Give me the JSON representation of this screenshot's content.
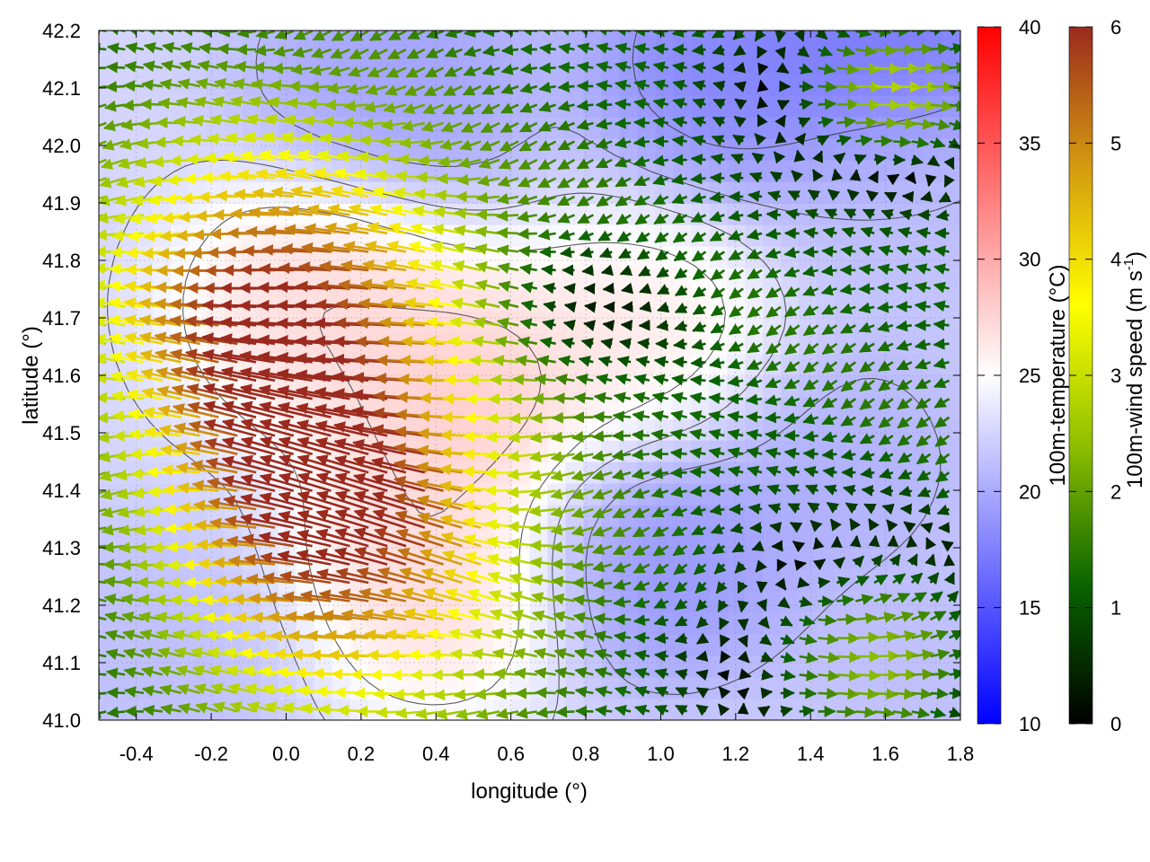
{
  "chart_data": {
    "type": "heatmap",
    "xlabel": "longitude (°)",
    "ylabel": "latitude (°)",
    "xlim": [
      -0.5,
      1.8
    ],
    "ylim": [
      41.0,
      42.2
    ],
    "x_ticks": [
      "-0.4",
      "-0.2",
      "0.0",
      "0.2",
      "0.4",
      "0.6",
      "0.8",
      "1.0",
      "1.2",
      "1.4",
      "1.6",
      "1.8"
    ],
    "y_ticks": [
      "41.0",
      "41.1",
      "41.2",
      "41.3",
      "41.4",
      "41.5",
      "41.6",
      "41.7",
      "41.8",
      "41.9",
      "42.0",
      "42.1",
      "42.2"
    ],
    "grid": true,
    "temperature_colorbar": {
      "label": "100m-temperature (°C)",
      "range": [
        10,
        40
      ],
      "ticks": [
        "10",
        "15",
        "20",
        "25",
        "30",
        "35",
        "40"
      ],
      "colors": [
        "#0000ff",
        "#ffffff",
        "#ff0000"
      ]
    },
    "wind_colorbar": {
      "label": "100m-wind speed (m s",
      "label_superscript": "-1",
      "label_close": ")",
      "range": [
        0,
        6
      ],
      "ticks": [
        "0",
        "1",
        "2",
        "3",
        "4",
        "5",
        "6"
      ],
      "colors": [
        "#000000",
        "#0a6400",
        "#8fbf00",
        "#ffff00",
        "#d49a10",
        "#9b2a1e"
      ]
    },
    "temperature_features": [
      {
        "lon": 1.2,
        "lat": 42.15,
        "temp": 17
      },
      {
        "lon": 1.6,
        "lat": 42.17,
        "temp": 16
      },
      {
        "lon": 0.3,
        "lat": 42.12,
        "temp": 19
      },
      {
        "lon": 0.5,
        "lat": 41.55,
        "temp": 29
      },
      {
        "lon": 0.4,
        "lat": 41.25,
        "temp": 28
      },
      {
        "lon": 0.1,
        "lat": 41.72,
        "temp": 28
      },
      {
        "lon": 0.95,
        "lat": 41.65,
        "temp": 27
      },
      {
        "lon": 1.0,
        "lat": 41.3,
        "temp": 18
      },
      {
        "lon": 1.45,
        "lat": 41.45,
        "temp": 20
      },
      {
        "lon": -0.35,
        "lat": 41.1,
        "temp": 21
      },
      {
        "lon": 1.7,
        "lat": 41.1,
        "temp": 21
      },
      {
        "lon": 1.65,
        "lat": 41.9,
        "temp": 21
      }
    ]
  }
}
